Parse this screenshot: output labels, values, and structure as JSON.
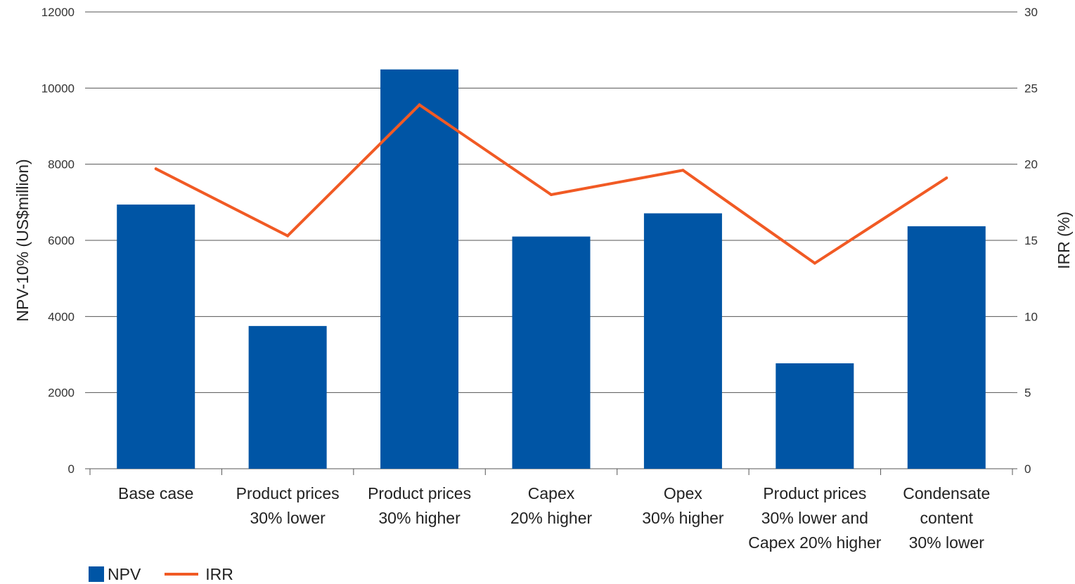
{
  "chart_data": {
    "type": "bar",
    "categories": [
      [
        "Base case"
      ],
      [
        "Product prices",
        "30% lower"
      ],
      [
        "Product prices",
        "30% higher"
      ],
      [
        "Capex",
        "20% higher"
      ],
      [
        "Opex",
        "30% higher"
      ],
      [
        "Product prices",
        "30% lower and",
        "Capex 20% higher"
      ],
      [
        "Condensate",
        "content",
        "30% lower"
      ]
    ],
    "series": [
      {
        "name": "NPV",
        "kind": "bar",
        "axis": "left",
        "color": "#0055a5",
        "values": [
          6940,
          3750,
          10490,
          6100,
          6710,
          2770,
          6370
        ]
      },
      {
        "name": "IRR",
        "kind": "line",
        "axis": "right",
        "color": "#f15a24",
        "values": [
          19.7,
          15.3,
          23.9,
          18.0,
          19.6,
          13.5,
          19.1
        ]
      }
    ],
    "ylabel": "NPV-10% (US$million)",
    "y2label": "IRR (%)",
    "ylim": [
      0,
      12000
    ],
    "y2lim": [
      0,
      30
    ],
    "yticks": [
      0,
      2000,
      4000,
      6000,
      8000,
      10000,
      12000
    ],
    "y2ticks": [
      0,
      5,
      10,
      15,
      20,
      25,
      30
    ],
    "grid": true,
    "legend_position": "bottom-left"
  },
  "legend": {
    "npv_label": "NPV",
    "irr_label": "IRR"
  }
}
